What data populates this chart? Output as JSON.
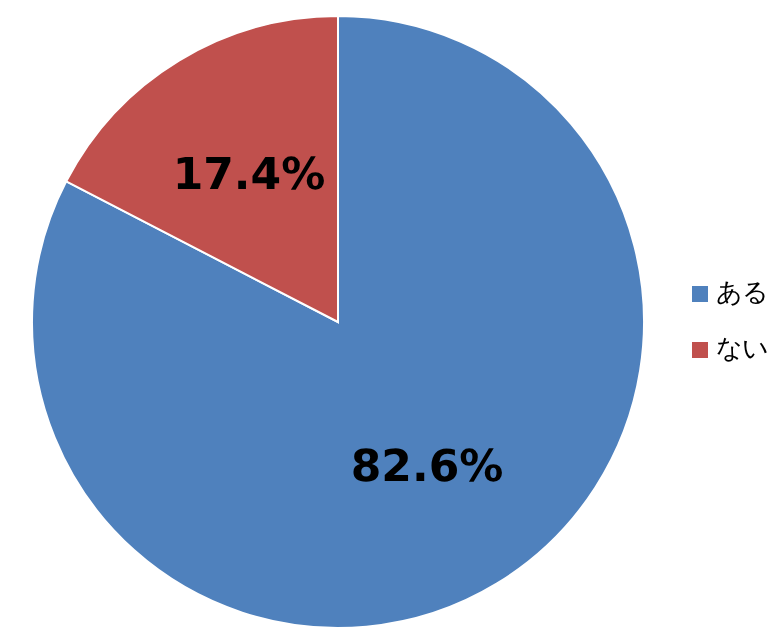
{
  "chart_data": {
    "type": "pie",
    "categories": [
      "ある",
      "ない"
    ],
    "values": [
      82.6,
      17.4
    ],
    "colors": [
      "#4f81bd",
      "#c0504d"
    ],
    "data_labels": true,
    "value_labels": [
      "82.6%",
      "17.4%"
    ],
    "legend": "right"
  }
}
